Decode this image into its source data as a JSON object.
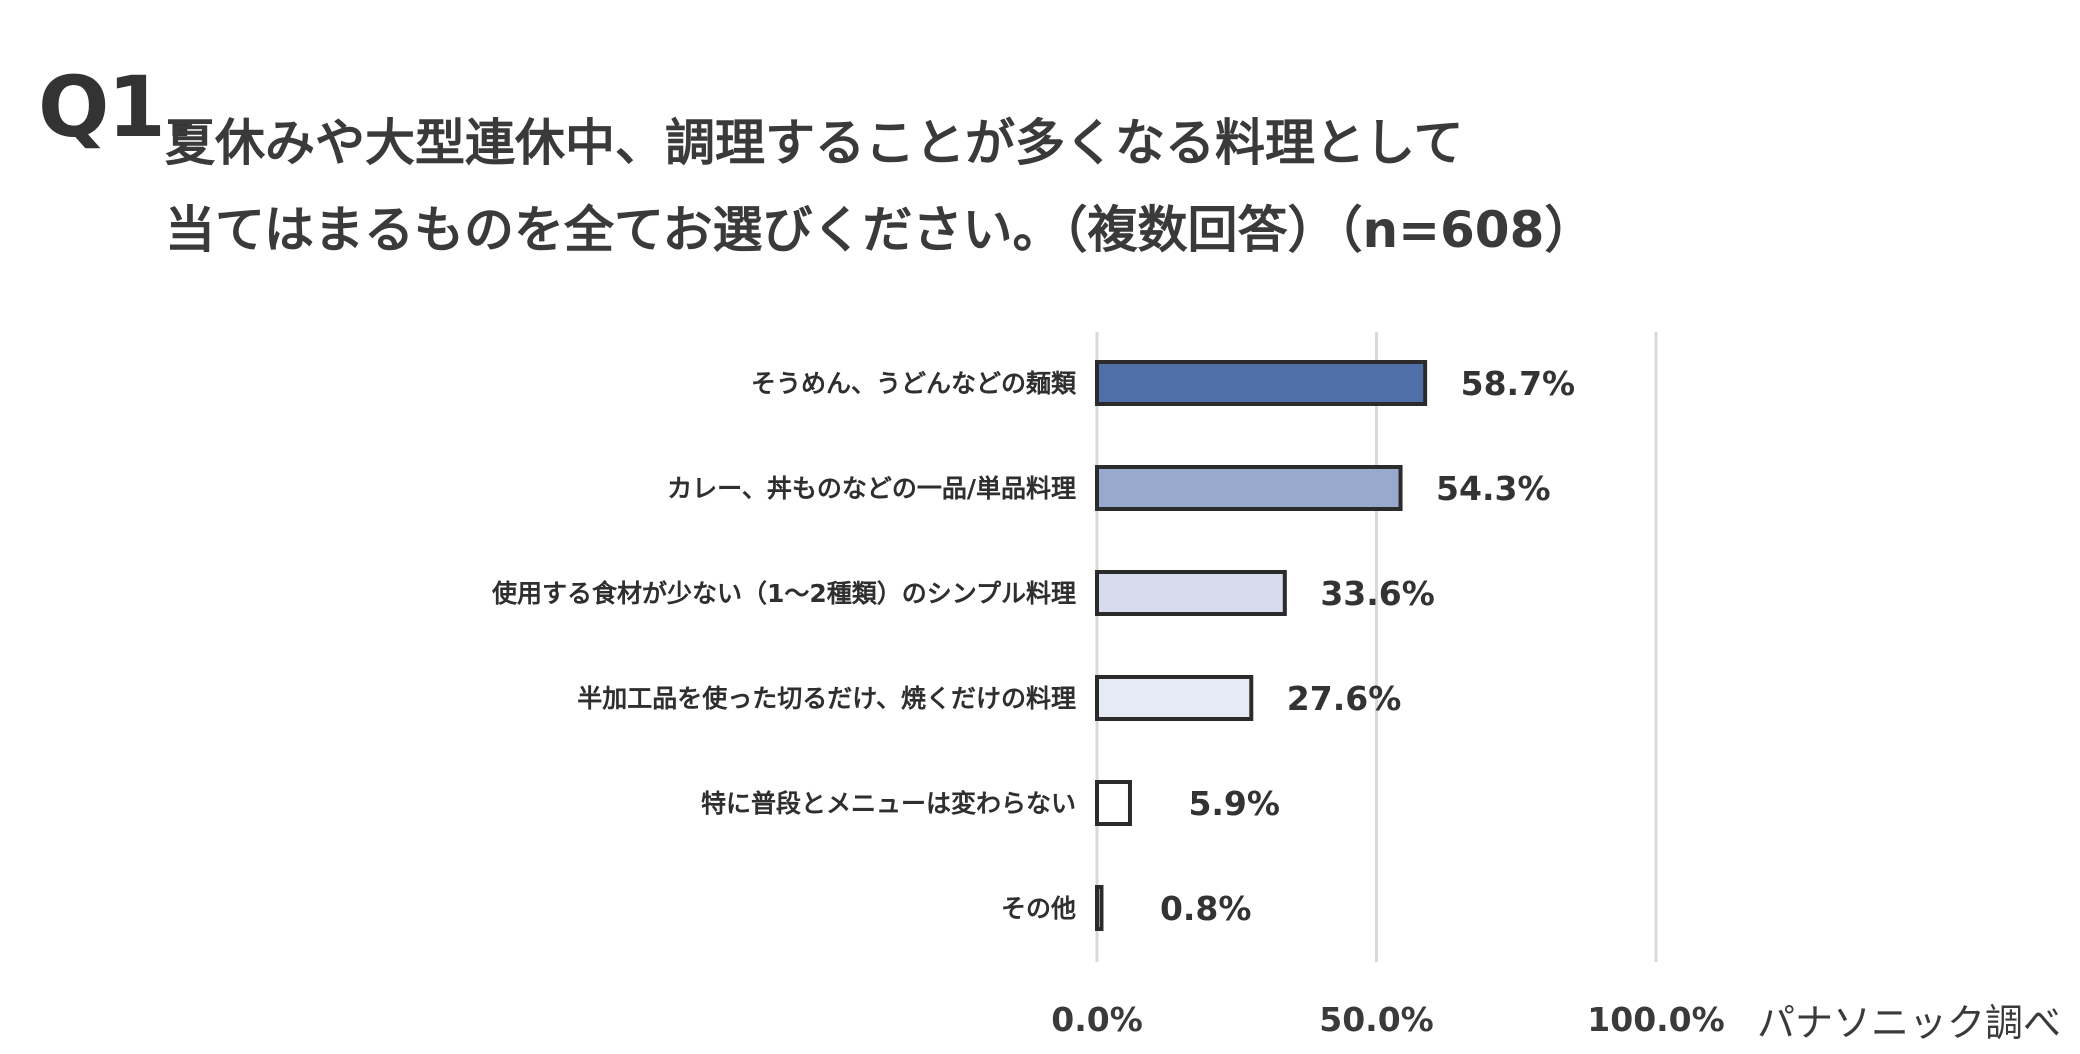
{
  "question": {
    "number": "Q1.",
    "line1": "夏休みや大型連休中、調理することが多くなる料理として",
    "line2": "当てはまるものを全てお選びください。（複数回答）（n=608）"
  },
  "source_note": "パナソニック調べ",
  "chart_data": {
    "type": "bar",
    "orientation": "horizontal",
    "categories": [
      "そうめん、うどんなどの麺類",
      "カレー、丼ものなどの一品/単品料理",
      "使用する食材が少ない（1〜2種類）のシンプル料理",
      "半加工品を使った切るだけ、焼くだけの料理",
      "特に普段とメニューは変わらない",
      "その他"
    ],
    "values": [
      58.7,
      54.3,
      33.6,
      27.6,
      5.9,
      0.8
    ],
    "value_labels": [
      "58.7%",
      "54.3%",
      "33.6%",
      "27.6%",
      "5.9%",
      "0.8%"
    ],
    "bar_colors": [
      "#4f6fa8",
      "#97a9cc",
      "#d6dcec",
      "#e6eaf4",
      "#ffffff",
      "#ffffff"
    ],
    "bar_stroke": "#2b2b2b",
    "xlim": [
      0,
      100
    ],
    "ticks": [
      0,
      50,
      100
    ],
    "tick_labels": [
      "0.0%",
      "50.0%",
      "100.0%"
    ],
    "gridline_color": "#d9d9d9",
    "grid": true,
    "legend": "none"
  }
}
